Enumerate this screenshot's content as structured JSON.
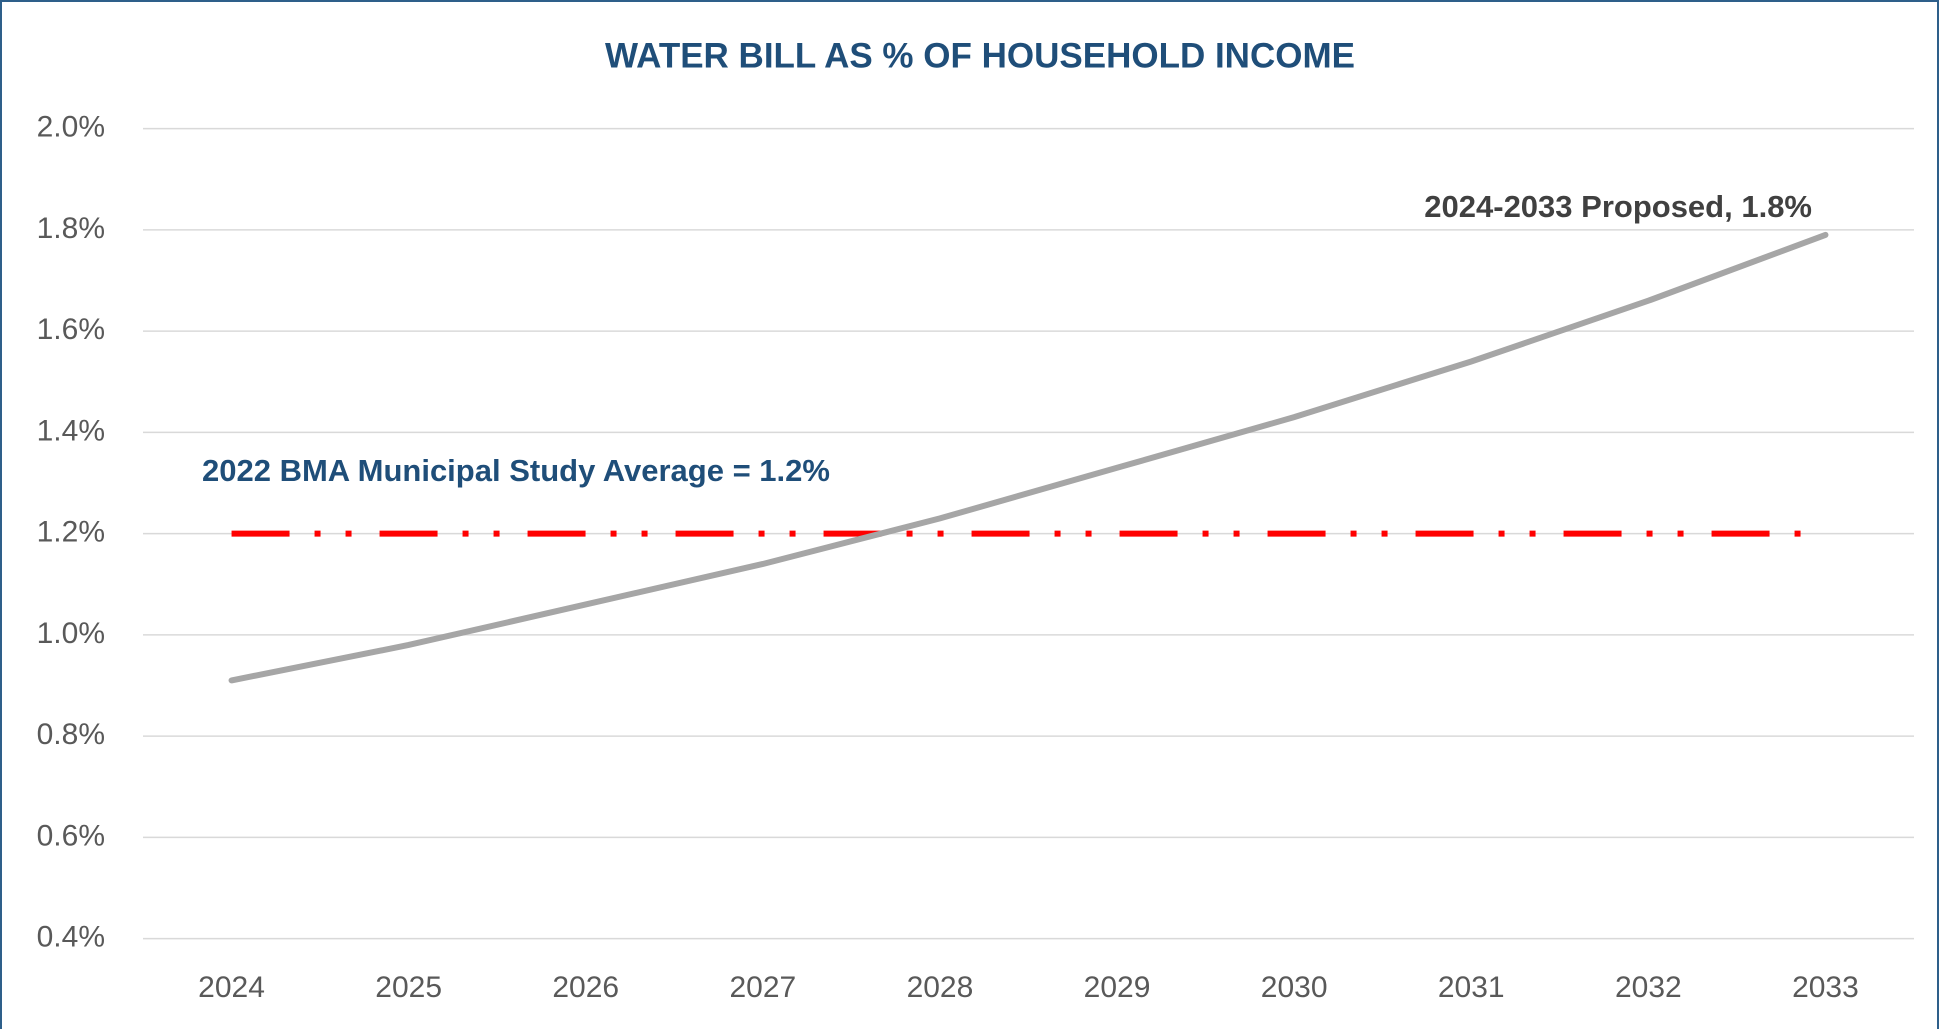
{
  "chart_data": {
    "type": "line",
    "title": "WATER BILL AS % OF HOUSEHOLD INCOME",
    "categories": [
      "2024",
      "2025",
      "2026",
      "2027",
      "2028",
      "2029",
      "2030",
      "2031",
      "2032",
      "2033"
    ],
    "series": [
      {
        "name": "2022 BMA Municipal Study Average = 1.2%",
        "color": "#ff0000",
        "style": "dash-dot-dot",
        "values": [
          1.2,
          1.2,
          1.2,
          1.2,
          1.2,
          1.2,
          1.2,
          1.2,
          1.2,
          1.2
        ]
      },
      {
        "name": "2024-2033 Proposed, 1.8%",
        "color": "#a6a6a6",
        "style": "solid",
        "values": [
          0.91,
          0.98,
          1.06,
          1.14,
          1.23,
          1.33,
          1.43,
          1.54,
          1.66,
          1.79
        ]
      }
    ],
    "ylim": [
      0.4,
      2.0
    ],
    "yticks": [
      {
        "value": 0.4,
        "label": "0.4%"
      },
      {
        "value": 0.6,
        "label": "0.6%"
      },
      {
        "value": 0.8,
        "label": "0.8%"
      },
      {
        "value": 1.0,
        "label": "1.0%"
      },
      {
        "value": 1.2,
        "label": "1.2%"
      },
      {
        "value": 1.4,
        "label": "1.4%"
      },
      {
        "value": 1.6,
        "label": "1.6%"
      },
      {
        "value": 1.8,
        "label": "1.8%"
      },
      {
        "value": 2.0,
        "label": "2.0%"
      }
    ],
    "grid": true
  }
}
